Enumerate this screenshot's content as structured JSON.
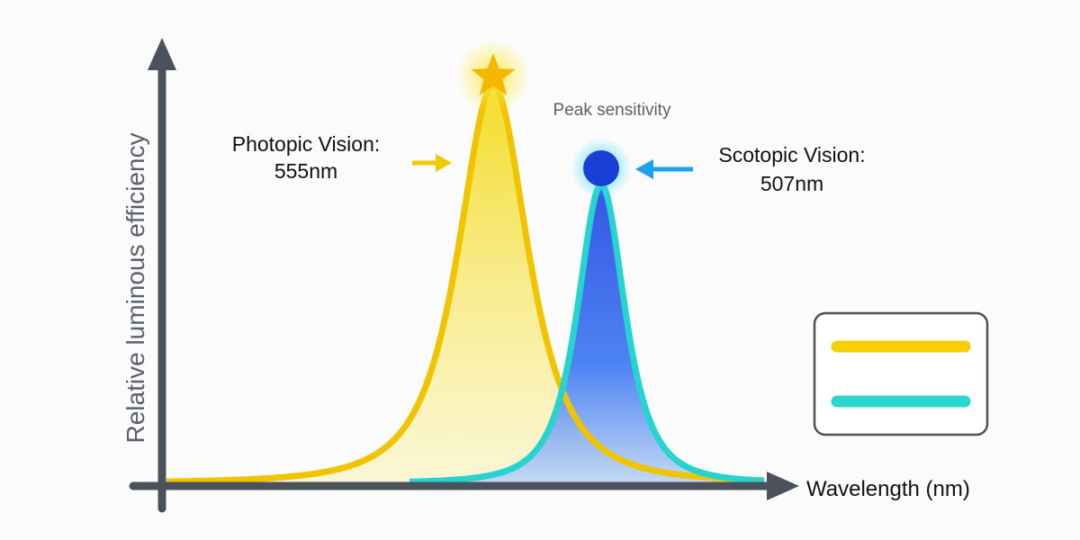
{
  "axes": {
    "y_label": "Relative luminous efficiency",
    "x_label": "Wavelength (nm)"
  },
  "annotations": {
    "photopic": {
      "title": "Photopic Vision:",
      "value": "555nm"
    },
    "scotopic": {
      "title": "Scotopic Vision:",
      "value": "507nm"
    },
    "peak": "Peak sensitivity"
  }
}
